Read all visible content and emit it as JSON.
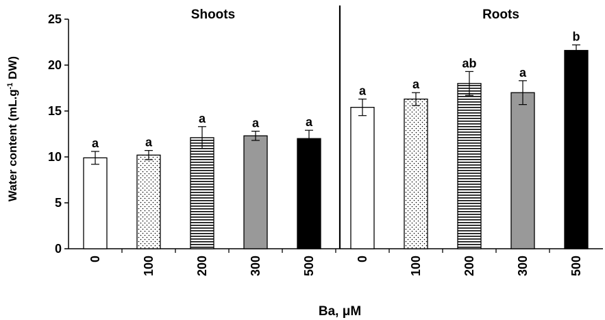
{
  "chart_data": {
    "type": "bar",
    "panels": [
      {
        "title": "Shoots",
        "categories": [
          "0",
          "100",
          "200",
          "300",
          "500"
        ],
        "values": [
          9.9,
          10.2,
          12.1,
          12.3,
          12.0
        ],
        "errors": [
          0.7,
          0.5,
          1.2,
          0.5,
          0.9
        ],
        "labels": [
          "a",
          "a",
          "a",
          "a",
          "a"
        ]
      },
      {
        "title": "Roots",
        "categories": [
          "0",
          "100",
          "200",
          "300",
          "500"
        ],
        "values": [
          15.4,
          16.3,
          18.0,
          17.0,
          21.6
        ],
        "errors": [
          0.9,
          0.7,
          1.3,
          1.3,
          0.6
        ],
        "labels": [
          "a",
          "a",
          "ab",
          "a",
          "b"
        ]
      }
    ],
    "xlabel": "Ba, μM",
    "ylabel_main": "Water content (mL.g",
    "ylabel_sup": "-1",
    "ylabel_end": " DW)",
    "ylim": [
      0,
      25
    ],
    "yticks": [
      "0",
      "5",
      "10",
      "15",
      "20",
      "25"
    ],
    "fills": [
      "white",
      "dots",
      "hstripes",
      "#999999",
      "#000000"
    ]
  }
}
